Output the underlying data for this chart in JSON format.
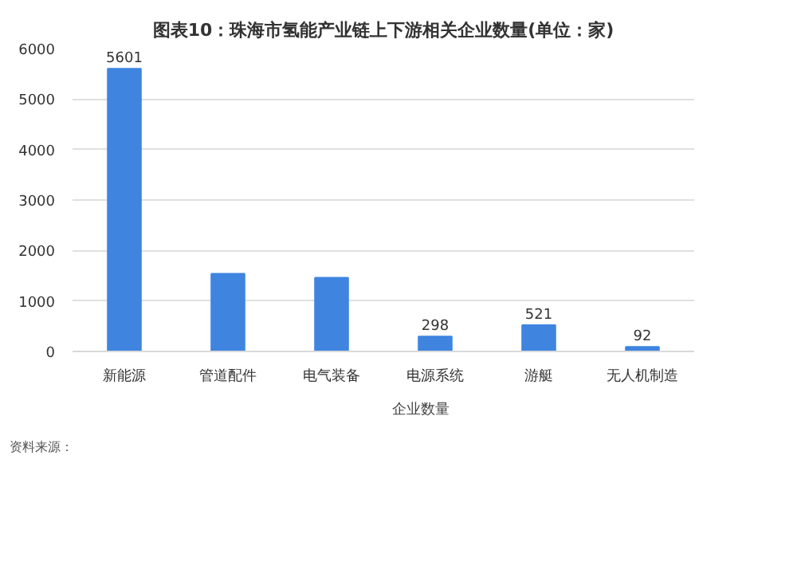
{
  "chart_data": {
    "type": "bar",
    "title": "图表10：珠海市氢能产业链上下游相关企业数量(单位：家)",
    "categories": [
      "新能源",
      "管道配件",
      "电气装备",
      "电源系统",
      "游艇",
      "无人机制造"
    ],
    "series": [
      {
        "name": "企业数量",
        "color": "#3f85e0",
        "values": [
          5601,
          1540,
          1460,
          298,
          521,
          92
        ],
        "value_labels": [
          "5601",
          null,
          null,
          "298",
          "521",
          "92"
        ]
      }
    ],
    "ylim": [
      0,
      6000
    ],
    "yticks": [
      0,
      1000,
      2000,
      3000,
      4000,
      5000,
      6000
    ],
    "grid": "y",
    "legend": "bottom",
    "annotations": [
      "资料来源："
    ]
  }
}
